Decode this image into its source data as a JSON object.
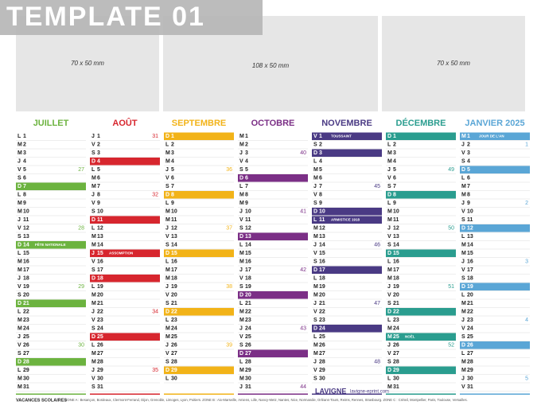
{
  "banner": "TEMPLATE 01",
  "photos": [
    "70 x 50 mm",
    "108 x 50 mm",
    "70 x 50 mm"
  ],
  "months": [
    {
      "name": "JUILLET",
      "color": "#6cb33f",
      "letters": [
        "L",
        "M",
        "M",
        "J",
        "V",
        "S",
        "D",
        "L",
        "M",
        "M",
        "J",
        "V",
        "S",
        "D",
        "L",
        "M",
        "M",
        "J",
        "V",
        "S",
        "D",
        "L",
        "M",
        "M",
        "J",
        "V",
        "S",
        "D",
        "L",
        "M",
        "M"
      ],
      "days": [
        1,
        2,
        3,
        4,
        5,
        6,
        7,
        8,
        9,
        10,
        11,
        12,
        13,
        14,
        15,
        16,
        17,
        18,
        19,
        20,
        21,
        22,
        23,
        24,
        25,
        26,
        27,
        28,
        29,
        30,
        31
      ],
      "weeks": [
        {
          "day": 5,
          "label": 27
        },
        {
          "day": 12,
          "label": 28
        },
        {
          "day": 19,
          "label": 29
        },
        {
          "day": 26,
          "label": 30
        }
      ],
      "holidays": [
        {
          "day": 14,
          "name": "FÊTE NATIONALE"
        }
      ]
    },
    {
      "name": "AOÛT",
      "color": "#d7262e",
      "letters": [
        "J",
        "V",
        "S",
        "D",
        "L",
        "M",
        "M",
        "J",
        "V",
        "S",
        "D",
        "L",
        "M",
        "M",
        "J",
        "V",
        "S",
        "D",
        "L",
        "M",
        "M",
        "J",
        "V",
        "S",
        "D",
        "L",
        "M",
        "M",
        "J",
        "V",
        "S"
      ],
      "days": [
        1,
        2,
        3,
        4,
        5,
        6,
        7,
        8,
        9,
        10,
        11,
        12,
        13,
        14,
        15,
        16,
        17,
        18,
        19,
        20,
        21,
        22,
        23,
        24,
        25,
        26,
        27,
        28,
        29,
        30,
        31
      ],
      "weeks": [
        {
          "day": 1,
          "label": 31
        },
        {
          "day": 8,
          "label": 32
        },
        {
          "day": 15,
          "label": 33
        },
        {
          "day": 22,
          "label": 34
        },
        {
          "day": 29,
          "label": 35
        }
      ],
      "holidays": [
        {
          "day": 15,
          "name": "ASSOMPTION"
        }
      ]
    },
    {
      "name": "SEPTEMBRE",
      "color": "#f2b318",
      "letters": [
        "D",
        "L",
        "M",
        "M",
        "J",
        "V",
        "S",
        "D",
        "L",
        "M",
        "M",
        "J",
        "V",
        "S",
        "D",
        "L",
        "M",
        "M",
        "J",
        "V",
        "S",
        "D",
        "L",
        "M",
        "M",
        "J",
        "V",
        "S",
        "D",
        "L"
      ],
      "days": [
        1,
        2,
        3,
        4,
        5,
        6,
        7,
        8,
        9,
        10,
        11,
        12,
        13,
        14,
        15,
        16,
        17,
        18,
        19,
        20,
        21,
        22,
        23,
        24,
        25,
        26,
        27,
        28,
        29,
        30
      ],
      "weeks": [
        {
          "day": 5,
          "label": 36
        },
        {
          "day": 12,
          "label": 37
        },
        {
          "day": 19,
          "label": 38
        },
        {
          "day": 26,
          "label": 39
        }
      ],
      "holidays": []
    },
    {
      "name": "OCTOBRE",
      "color": "#7b2f86",
      "letters": [
        "M",
        "M",
        "J",
        "V",
        "S",
        "D",
        "L",
        "M",
        "M",
        "J",
        "V",
        "S",
        "D",
        "L",
        "M",
        "M",
        "J",
        "V",
        "S",
        "D",
        "L",
        "M",
        "M",
        "J",
        "V",
        "S",
        "D",
        "L",
        "M",
        "M",
        "J"
      ],
      "days": [
        1,
        2,
        3,
        4,
        5,
        6,
        7,
        8,
        9,
        10,
        11,
        12,
        13,
        14,
        15,
        16,
        17,
        18,
        19,
        20,
        21,
        22,
        23,
        24,
        25,
        26,
        27,
        28,
        29,
        30,
        31
      ],
      "weeks": [
        {
          "day": 3,
          "label": 40
        },
        {
          "day": 10,
          "label": 41
        },
        {
          "day": 17,
          "label": 42
        },
        {
          "day": 24,
          "label": 43
        },
        {
          "day": 31,
          "label": 44
        }
      ],
      "holidays": []
    },
    {
      "name": "NOVEMBRE",
      "color": "#4a3a84",
      "letters": [
        "V",
        "S",
        "D",
        "L",
        "M",
        "M",
        "J",
        "V",
        "S",
        "D",
        "L",
        "M",
        "M",
        "J",
        "V",
        "S",
        "D",
        "L",
        "M",
        "M",
        "J",
        "V",
        "S",
        "D",
        "L",
        "M",
        "M",
        "J",
        "V",
        "S"
      ],
      "days": [
        1,
        2,
        3,
        4,
        5,
        6,
        7,
        8,
        9,
        10,
        11,
        12,
        13,
        14,
        15,
        16,
        17,
        18,
        19,
        20,
        21,
        22,
        23,
        24,
        25,
        26,
        27,
        28,
        29,
        30
      ],
      "weeks": [
        {
          "day": 7,
          "label": 45
        },
        {
          "day": 14,
          "label": 46
        },
        {
          "day": 21,
          "label": 47
        },
        {
          "day": 28,
          "label": 48
        }
      ],
      "holidays": [
        {
          "day": 1,
          "name": "TOUSSAINT"
        },
        {
          "day": 11,
          "name": "ARMISTICE 1918"
        }
      ]
    },
    {
      "name": "DÉCEMBRE",
      "color": "#2a9d8f",
      "letters": [
        "D",
        "L",
        "M",
        "M",
        "J",
        "V",
        "S",
        "D",
        "L",
        "M",
        "M",
        "J",
        "V",
        "S",
        "D",
        "L",
        "M",
        "M",
        "J",
        "V",
        "S",
        "D",
        "L",
        "M",
        "M",
        "J",
        "V",
        "S",
        "D",
        "L",
        "M"
      ],
      "days": [
        1,
        2,
        3,
        4,
        5,
        6,
        7,
        8,
        9,
        10,
        11,
        12,
        13,
        14,
        15,
        16,
        17,
        18,
        19,
        20,
        21,
        22,
        23,
        24,
        25,
        26,
        27,
        28,
        29,
        30,
        31
      ],
      "weeks": [
        {
          "day": 5,
          "label": 49
        },
        {
          "day": 12,
          "label": 50
        },
        {
          "day": 19,
          "label": 51
        },
        {
          "day": 26,
          "label": 52
        }
      ],
      "holidays": [
        {
          "day": 25,
          "name": "NOËL"
        }
      ]
    },
    {
      "name": "JANVIER 2025",
      "color": "#5aa6d6",
      "letters": [
        "M",
        "J",
        "V",
        "S",
        "D",
        "L",
        "M",
        "M",
        "J",
        "V",
        "S",
        "D",
        "L",
        "M",
        "M",
        "J",
        "V",
        "S",
        "D",
        "L",
        "M",
        "M",
        "J",
        "V",
        "S",
        "D",
        "L",
        "M",
        "M",
        "J",
        "V"
      ],
      "days": [
        1,
        2,
        3,
        4,
        5,
        6,
        7,
        8,
        9,
        10,
        11,
        12,
        13,
        14,
        15,
        16,
        17,
        18,
        19,
        20,
        21,
        22,
        23,
        24,
        25,
        26,
        27,
        28,
        29,
        30,
        31
      ],
      "weeks": [
        {
          "day": 2,
          "label": 1
        },
        {
          "day": 9,
          "label": 2
        },
        {
          "day": 16,
          "label": 3
        },
        {
          "day": 23,
          "label": 4
        },
        {
          "day": 30,
          "label": 5
        }
      ],
      "holidays": [
        {
          "day": 1,
          "name": "JOUR DE L'AN"
        }
      ]
    }
  ],
  "footer": {
    "title": "VACANCES SCOLAIRES",
    "zones": "ZONE A : Besançon, Bordeaux, Clermont-Ferrand, Dijon, Grenoble, Limoges, Lyon, Poitiers. ZONE B : Aix-Marseille, Amiens, Lille, Nancy-Metz, Nantes, Nice, Normandie, Orléans-Tours, Reims, Rennes, Strasbourg. ZONE C : Créteil, Montpellier, Paris, Toulouse, Versailles."
  },
  "logo": {
    "brand": "LAVIGNE",
    "site": "lavigne-eprint.com"
  }
}
